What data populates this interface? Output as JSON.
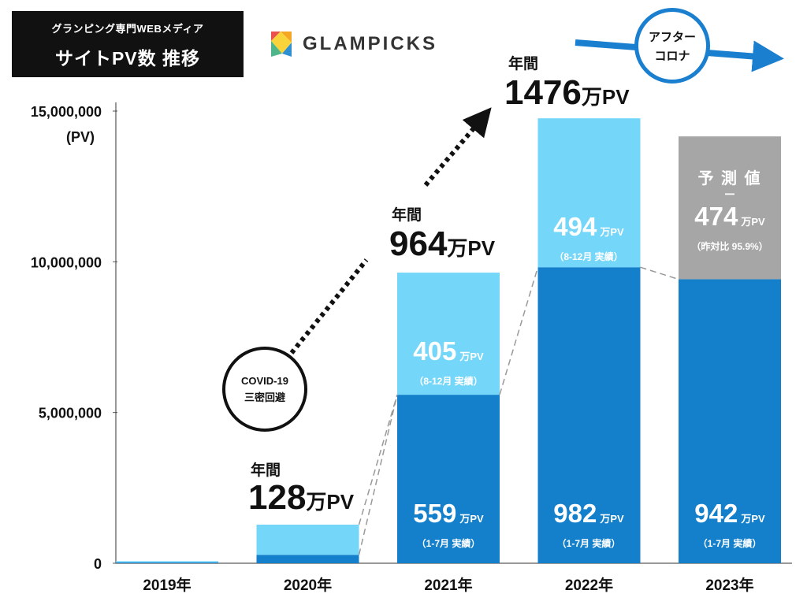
{
  "header": {
    "subtitle": "グランピング専門WEBメディア",
    "title": "サイトPV数 推移"
  },
  "logo": {
    "text": "GLAMPICKS"
  },
  "colors": {
    "dark": "#1480cc",
    "light": "#74d6f9",
    "gray": "#a6a6a6",
    "arrow": "#1a7fcf"
  },
  "chart_data": {
    "type": "bar",
    "stacked": true,
    "categories": [
      "2019年",
      "2020年",
      "2021年",
      "2022年",
      "2023年"
    ],
    "series": [
      {
        "name": "1-7月 実績",
        "values": [
          30000,
          280000,
          5590000,
          9820000,
          9420000
        ]
      },
      {
        "name": "8-12月 実績",
        "values": [
          40000,
          1000000,
          4050000,
          4940000,
          0
        ]
      },
      {
        "name": "予測値",
        "values": [
          0,
          0,
          0,
          0,
          4740000
        ]
      }
    ],
    "ylabel": "(PV)",
    "ylim": [
      0,
      15000000
    ],
    "yticks": [
      0,
      5000000,
      10000000,
      15000000
    ],
    "ytick_labels": [
      "0",
      "5,000,000",
      "10,000,000",
      "15,000,000"
    ]
  },
  "annotations": {
    "annual_label": "年間",
    "y2020": {
      "value": "128",
      "unit": "万PV"
    },
    "y2021": {
      "value": "964",
      "unit": "万PV"
    },
    "y2022": {
      "value": "1476",
      "unit": "万PV"
    },
    "bar2021": {
      "top_value": "405",
      "top_unit": "万PV",
      "top_note": "（8-12月 実績）",
      "bottom_value": "559",
      "bottom_unit": "万PV",
      "bottom_note": "（1-7月 実績）"
    },
    "bar2022": {
      "top_value": "494",
      "top_unit": "万PV",
      "top_note": "（8-12月 実績）",
      "bottom_value": "982",
      "bottom_unit": "万PV",
      "bottom_note": "（1-7月 実績）"
    },
    "bar2023": {
      "forecast_label": "予 測 値",
      "dash": "ー",
      "top_value": "474",
      "top_unit": "万PV",
      "top_note": "（昨対比 95.9%）",
      "bottom_value": "942",
      "bottom_unit": "万PV",
      "bottom_note": "（1-7月 実績）"
    },
    "covid": {
      "line1": "COVID-19",
      "line2": "三密回避"
    },
    "after": {
      "line1": "アフター",
      "line2": "コロナ"
    }
  }
}
